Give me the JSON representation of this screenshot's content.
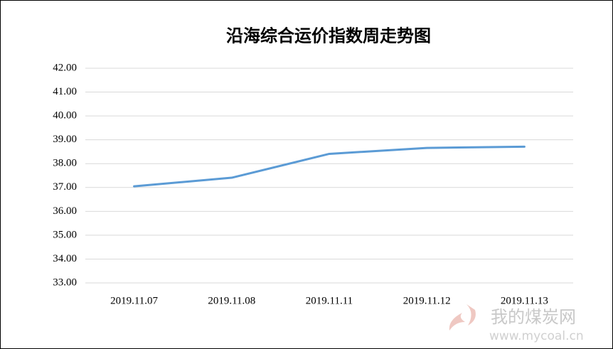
{
  "chart_data": {
    "type": "line",
    "title": "沿海综合运价指数周走势图",
    "categories": [
      "2019.11.07",
      "2019.11.08",
      "2019.11.11",
      "2019.11.12",
      "2019.11.13"
    ],
    "series": [
      {
        "name": "沿海综合运价指数",
        "color": "#5b9bd5",
        "values": [
          37.05,
          37.41,
          38.41,
          38.66,
          38.71
        ]
      }
    ],
    "ylim": [
      33,
      42
    ],
    "yticks": [
      {
        "value": 33,
        "label": "33.00"
      },
      {
        "value": 34,
        "label": "34.00"
      },
      {
        "value": 35,
        "label": "35.00"
      },
      {
        "value": 36,
        "label": "36.00"
      },
      {
        "value": 37,
        "label": "37.00"
      },
      {
        "value": 38,
        "label": "38.00"
      },
      {
        "value": 39,
        "label": "39.00"
      },
      {
        "value": 40,
        "label": "40.00"
      },
      {
        "value": 41,
        "label": "41.00"
      },
      {
        "value": 42,
        "label": "42.00"
      }
    ],
    "grid": true,
    "legend": false
  },
  "watermark": {
    "name": "我的煤炭网",
    "url": "www.mycoal.cn"
  }
}
